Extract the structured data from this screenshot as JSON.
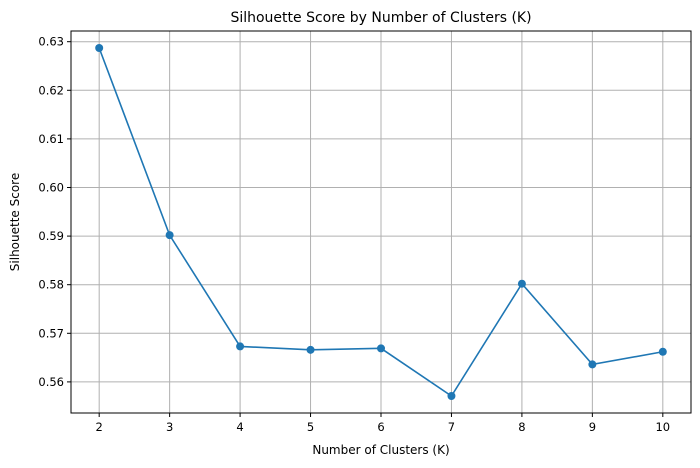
{
  "chart_data": {
    "type": "line",
    "title": "Silhouette Score by Number of Clusters (K)",
    "xlabel": "Number of Clusters (K)",
    "ylabel": "Silhouette Score",
    "x": [
      2,
      3,
      4,
      5,
      6,
      7,
      8,
      9,
      10
    ],
    "series": [
      {
        "values": [
          0.6287,
          0.5902,
          0.5673,
          0.5666,
          0.5669,
          0.5571,
          0.5802,
          0.5636,
          0.5662
        ],
        "color": "#1f77b4",
        "marker": "circle"
      }
    ],
    "xticks": [
      "2",
      "3",
      "4",
      "5",
      "6",
      "7",
      "8",
      "9",
      "10"
    ],
    "yticks": [
      "0.56",
      "0.57",
      "0.58",
      "0.59",
      "0.60",
      "0.61",
      "0.62",
      "0.63"
    ],
    "xlim": [
      1.6,
      10.4
    ],
    "ylim": [
      0.5536,
      0.6322
    ],
    "grid": true,
    "grid_color": "#b0b0b0"
  }
}
